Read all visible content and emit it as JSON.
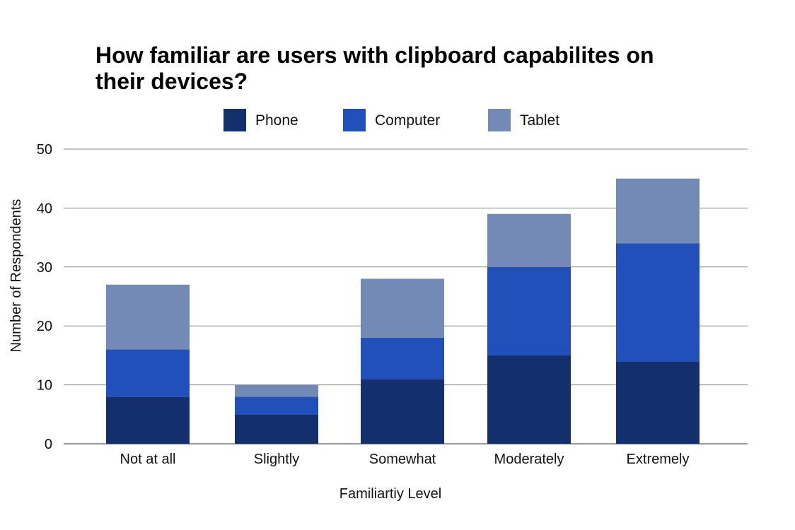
{
  "chart_data": {
    "type": "bar",
    "stacked": true,
    "title": "How familiar are users with clipboard capabilites on their devices?",
    "xlabel": "Familiartiy Level",
    "ylabel": "Number of Respondents",
    "categories": [
      "Not at all",
      "Slightly",
      "Somewhat",
      "Moderately",
      "Extremely"
    ],
    "series": [
      {
        "name": "Phone",
        "color": "#142f6e",
        "values": [
          8,
          5,
          11,
          15,
          14
        ]
      },
      {
        "name": "Computer",
        "color": "#2150ba",
        "values": [
          8,
          3,
          7,
          15,
          20
        ]
      },
      {
        "name": "Tablet",
        "color": "#7389b6",
        "values": [
          11,
          2,
          10,
          9,
          11
        ]
      }
    ],
    "ylim": [
      0,
      50
    ],
    "yticks": [
      "0",
      "10",
      "20",
      "30",
      "40",
      "50"
    ],
    "grid": true,
    "legend_position": "top"
  }
}
